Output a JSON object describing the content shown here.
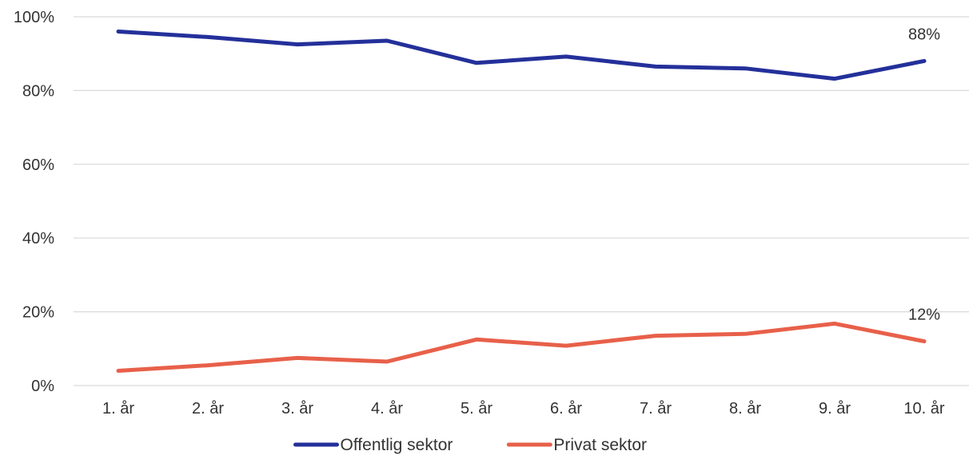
{
  "chart_data": {
    "type": "line",
    "title": "",
    "xlabel": "",
    "ylabel": "",
    "categories": [
      "1. år",
      "2. år",
      "3. år",
      "4. år",
      "5. år",
      "6. år",
      "7. år",
      "8. år",
      "9. år",
      "10. år"
    ],
    "ylim": [
      0,
      100
    ],
    "yticks": [
      0,
      20,
      40,
      60,
      80,
      100
    ],
    "ytick_labels": [
      "0%",
      "20%",
      "40%",
      "60%",
      "80%",
      "100%"
    ],
    "grid": true,
    "legend_position": "bottom",
    "series": [
      {
        "name": "Offentlig sektor",
        "color": "#24309a",
        "values": [
          96,
          94.5,
          92.5,
          93.5,
          87.5,
          89.2,
          86.5,
          86,
          83.2,
          88
        ],
        "end_label": "88%"
      },
      {
        "name": "Privat sektor",
        "color": "#e8604a",
        "values": [
          4,
          5.5,
          7.5,
          6.5,
          12.5,
          10.8,
          13.5,
          14,
          16.8,
          12
        ],
        "end_label": "12%"
      }
    ]
  }
}
